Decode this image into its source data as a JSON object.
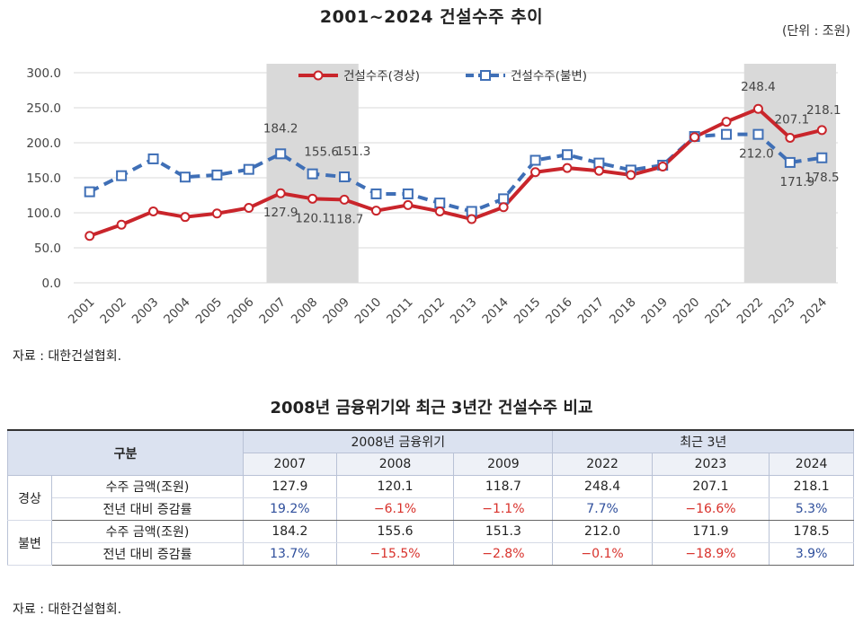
{
  "chart_title": "2001~2024 건설수주 추이",
  "unit_label": "(단위 : 조원)",
  "source_label": "자료 : 대한건설협회.",
  "colors": {
    "series_1": "#c9252b",
    "series_2": "#3f6fb6",
    "highlight": "#d9d9d9"
  },
  "chart_data": {
    "type": "line",
    "x": [
      "2001",
      "2002",
      "2003",
      "2004",
      "2005",
      "2006",
      "2007",
      "2008",
      "2009",
      "2010",
      "2011",
      "2012",
      "2013",
      "2014",
      "2015",
      "2016",
      "2017",
      "2018",
      "2019",
      "2020",
      "2021",
      "2022",
      "2023",
      "2024"
    ],
    "series": [
      {
        "name": "건설수주(경상)",
        "marker": "circle",
        "style": "solid",
        "values": [
          67,
          83,
          102,
          94,
          99,
          107,
          127.9,
          120.1,
          118.7,
          103,
          111,
          102,
          91,
          108,
          158,
          164,
          160,
          154,
          166,
          208,
          230,
          248.4,
          207.1,
          218.1
        ]
      },
      {
        "name": "건설수주(불변)",
        "marker": "square",
        "style": "dashed",
        "values": [
          130,
          153,
          177,
          151,
          154,
          162,
          184.2,
          155.6,
          151.3,
          127,
          127,
          114,
          102,
          120,
          175,
          183,
          171,
          161,
          168,
          209,
          212,
          212.0,
          171.9,
          178.5
        ]
      }
    ],
    "data_labels": [
      "184.2",
      "155.6",
      "151.3",
      "127.9",
      "120.1",
      "118.7",
      "248.4",
      "207.1",
      "218.1",
      "212.0",
      "171.9",
      "178.5"
    ],
    "y_ticks": [
      "0.0",
      "50.0",
      "100.0",
      "150.0",
      "200.0",
      "250.0",
      "300.0"
    ],
    "ylim": [
      0,
      300
    ],
    "highlight_ranges": [
      [
        "2007",
        "2009"
      ],
      [
        "2022",
        "2024"
      ]
    ],
    "legend_position": "top-center",
    "grid": true
  },
  "table": {
    "title": "2008년 금융위기와 최근 3년간 건설수주 비교",
    "header_category": "구분",
    "group_1": "2008년 금융위기",
    "group_2": "최근 3년",
    "years": [
      "2007",
      "2008",
      "2009",
      "2022",
      "2023",
      "2024"
    ],
    "groups": [
      {
        "label": "경상",
        "rows": [
          {
            "metric": "수주 금액(조원)",
            "cells": [
              "127.9",
              "120.1",
              "118.7",
              "248.4",
              "207.1",
              "218.1"
            ]
          },
          {
            "metric": "전년 대비 증감률",
            "cells": [
              "19.2%",
              "−6.1%",
              "−1.1%",
              "7.7%",
              "−16.6%",
              "5.3%"
            ]
          }
        ]
      },
      {
        "label": "불변",
        "rows": [
          {
            "metric": "수주 금액(조원)",
            "cells": [
              "184.2",
              "155.6",
              "151.3",
              "212.0",
              "171.9",
              "178.5"
            ]
          },
          {
            "metric": "전년 대비 증감률",
            "cells": [
              "13.7%",
              "−15.5%",
              "−2.8%",
              "−0.1%",
              "−18.9%",
              "3.9%"
            ]
          }
        ]
      }
    ],
    "source_label": "자료 : 대한건설협회."
  }
}
